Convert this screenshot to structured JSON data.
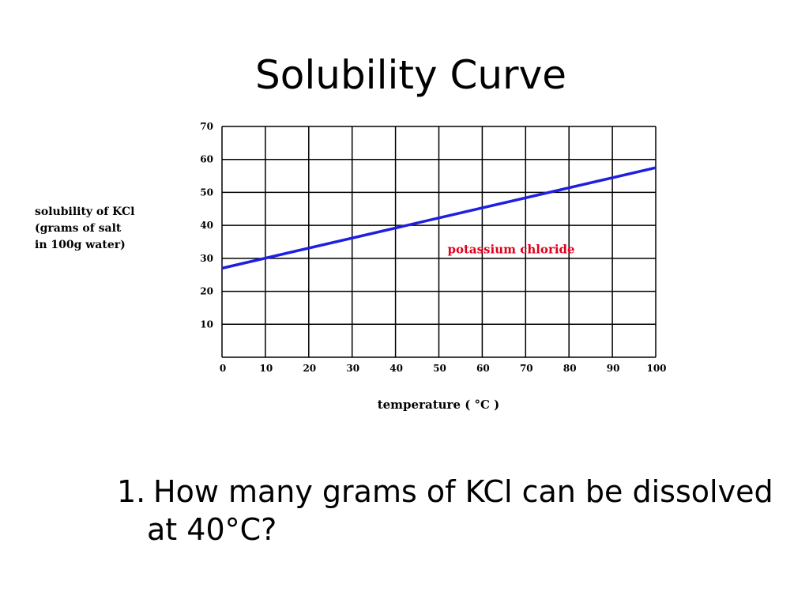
{
  "slide": {
    "title": "Solubility Curve"
  },
  "question": {
    "number": "1.",
    "line1": "How many grams of KCl can be dissolved",
    "line2": "at 40°C?"
  },
  "chart_data": {
    "type": "line",
    "title": "",
    "xlabel": "temperature ( °C )",
    "ylabel_lines": [
      "solubility of KCl",
      "(grams of salt",
      "in 100g water)"
    ],
    "x_ticks": [
      0,
      10,
      20,
      30,
      40,
      50,
      60,
      70,
      80,
      90,
      100
    ],
    "y_ticks": [
      10,
      20,
      30,
      40,
      50,
      60,
      70
    ],
    "xlim": [
      0,
      100
    ],
    "ylim": [
      0,
      70
    ],
    "grid": true,
    "series": [
      {
        "name": "potassium chloride",
        "color": "#1f1fe0",
        "label_color": "#e0001b",
        "x": [
          0,
          100
        ],
        "y": [
          27,
          57.5
        ]
      }
    ]
  }
}
